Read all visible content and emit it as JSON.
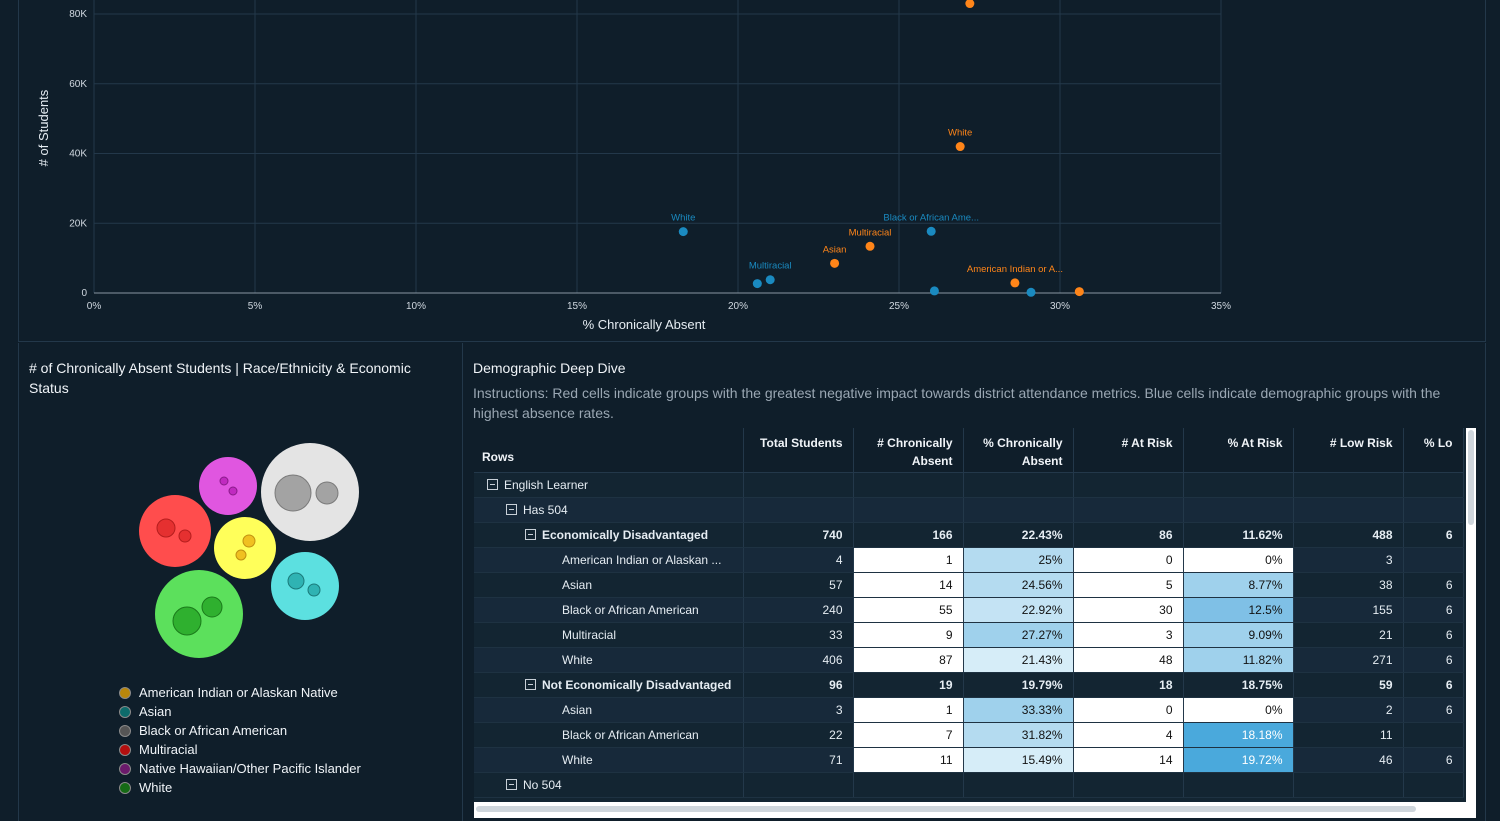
{
  "scatter": {
    "xlabel": "% Chronically Absent",
    "ylabel": "# of Students",
    "x_ticks": [
      "0%",
      "5%",
      "10%",
      "15%",
      "20%",
      "25%",
      "30%",
      "35%"
    ],
    "y_ticks": [
      "0",
      "20K",
      "40K",
      "60K",
      "80K"
    ],
    "colors": {
      "blue": "#1a8ac0",
      "orange": "#ff8519"
    }
  },
  "chart_data": [
    {
      "type": "scatter",
      "xlabel": "% Chronically Absent",
      "ylabel": "# of Students",
      "xlim": [
        0,
        35
      ],
      "ylim": [
        0,
        83000
      ],
      "points": [
        {
          "x": 27.2,
          "y": 83000,
          "series": "orange",
          "label": ""
        },
        {
          "x": 26.9,
          "y": 42000,
          "series": "orange",
          "label": "White"
        },
        {
          "x": 18.3,
          "y": 17600,
          "series": "blue",
          "label": "White"
        },
        {
          "x": 26.0,
          "y": 17700,
          "series": "blue",
          "label": "Black or African Ame..."
        },
        {
          "x": 24.1,
          "y": 13400,
          "series": "orange",
          "label": "Multiracial"
        },
        {
          "x": 23.0,
          "y": 8500,
          "series": "orange",
          "label": "Asian"
        },
        {
          "x": 21.0,
          "y": 3800,
          "series": "blue",
          "label": "Multiracial"
        },
        {
          "x": 20.6,
          "y": 2700,
          "series": "blue",
          "label": ""
        },
        {
          "x": 28.6,
          "y": 2900,
          "series": "orange",
          "label": "American Indian or A..."
        },
        {
          "x": 26.1,
          "y": 600,
          "series": "blue",
          "label": ""
        },
        {
          "x": 29.1,
          "y": 200,
          "series": "blue",
          "label": ""
        },
        {
          "x": 30.6,
          "y": 400,
          "series": "orange",
          "label": ""
        }
      ]
    }
  ],
  "bubble": {
    "title": "# of Chronically Absent Students  |  Race/Ethnicity & Economic Status",
    "legend": [
      {
        "label": "American Indian or Alaskan Native",
        "color": "#b8860b"
      },
      {
        "label": "Asian",
        "color": "#0d6b6b"
      },
      {
        "label": "Black or African American",
        "color": "#555555"
      },
      {
        "label": "Multiracial",
        "color": "#b30f0f"
      },
      {
        "label": "Native Hawaiian/Other Pacific Islander",
        "color": "#6b1a6b"
      },
      {
        "label": "White",
        "color": "#156a15"
      }
    ]
  },
  "deep": {
    "title": "Demographic Deep Dive",
    "instructions": "Instructions: Red cells indicate groups with the greatest negative impact towards district attendance metrics. Blue cells indicate demographic groups with the highest absence rates.",
    "headers": [
      "Rows",
      "Total Students",
      "# Chronically Absent",
      "% Chronically Absent",
      "# At Risk",
      "% At Risk",
      "# Low Risk",
      "% Lo"
    ],
    "rows": [
      {
        "label": "English Learner",
        "level": 0,
        "expander": true,
        "bold": false,
        "cells": [
          "",
          "",
          "",
          "",
          "",
          "",
          ""
        ]
      },
      {
        "label": "Has 504",
        "level": 1,
        "expander": true,
        "bold": false,
        "cells": [
          "",
          "",
          "",
          "",
          "",
          "",
          ""
        ]
      },
      {
        "label": "Economically Disadvantaged",
        "level": 2,
        "expander": true,
        "bold": true,
        "cells": [
          "740",
          "166",
          "22.43%",
          "86",
          "11.62%",
          "488",
          "6"
        ]
      },
      {
        "label": "American Indian or Alaskan ...",
        "level": 3,
        "expander": false,
        "bold": false,
        "cells": [
          "4",
          "1",
          "25%",
          "0",
          "0%",
          "3",
          ""
        ]
      },
      {
        "label": "Asian",
        "level": 3,
        "expander": false,
        "bold": false,
        "cells": [
          "57",
          "14",
          "24.56%",
          "5",
          "8.77%",
          "38",
          "6"
        ]
      },
      {
        "label": "Black or African American",
        "level": 3,
        "expander": false,
        "bold": false,
        "cells": [
          "240",
          "55",
          "22.92%",
          "30",
          "12.5%",
          "155",
          "6"
        ]
      },
      {
        "label": "Multiracial",
        "level": 3,
        "expander": false,
        "bold": false,
        "cells": [
          "33",
          "9",
          "27.27%",
          "3",
          "9.09%",
          "21",
          "6"
        ]
      },
      {
        "label": "White",
        "level": 3,
        "expander": false,
        "bold": false,
        "cells": [
          "406",
          "87",
          "21.43%",
          "48",
          "11.82%",
          "271",
          "6"
        ]
      },
      {
        "label": "Not Economically Disadvantaged",
        "level": 2,
        "expander": true,
        "bold": true,
        "cells": [
          "96",
          "19",
          "19.79%",
          "18",
          "18.75%",
          "59",
          "6"
        ]
      },
      {
        "label": "Asian",
        "level": 3,
        "expander": false,
        "bold": false,
        "cells": [
          "3",
          "1",
          "33.33%",
          "0",
          "0%",
          "2",
          "6"
        ]
      },
      {
        "label": "Black or African American",
        "level": 3,
        "expander": false,
        "bold": false,
        "cells": [
          "22",
          "7",
          "31.82%",
          "4",
          "18.18%",
          "11",
          ""
        ]
      },
      {
        "label": "White",
        "level": 3,
        "expander": false,
        "bold": false,
        "cells": [
          "71",
          "11",
          "15.49%",
          "14",
          "19.72%",
          "46",
          "6"
        ]
      },
      {
        "label": "No 504",
        "level": 1,
        "expander": true,
        "bold": false,
        "cells": [
          "",
          "",
          "",
          "",
          "",
          "",
          ""
        ]
      }
    ]
  }
}
